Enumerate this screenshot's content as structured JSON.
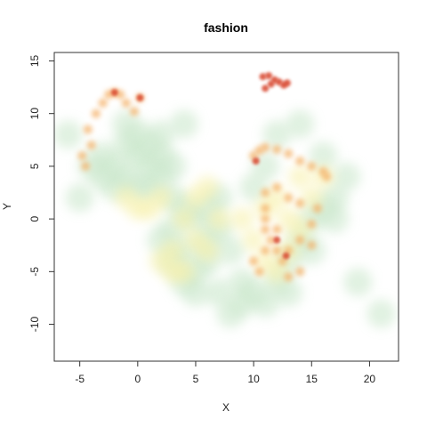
{
  "chart_data": {
    "type": "scatter",
    "title": "fashion",
    "xlabel": "X",
    "ylabel": "Y",
    "xlim": [
      -7.2,
      22.5
    ],
    "ylim": [
      -13.5,
      15.8
    ],
    "xticks": [
      -5,
      0,
      5,
      10,
      15,
      20
    ],
    "yticks": [
      -10,
      -5,
      0,
      5,
      10,
      15
    ],
    "grid": false,
    "legend": "none",
    "colors": {
      "low_density": "#c8e6c9",
      "mid_density": "#f7f0a8",
      "high_density": "#f5b066",
      "peak_density": "#d8462f"
    },
    "series": [
      {
        "density": "low",
        "points": [
          [
            -3,
            6
          ],
          [
            -2,
            5
          ],
          [
            -1,
            7
          ],
          [
            0,
            6
          ],
          [
            1,
            5
          ],
          [
            2,
            4
          ],
          [
            -2,
            3
          ],
          [
            -3,
            4
          ],
          [
            0,
            3
          ],
          [
            1,
            7
          ],
          [
            -1,
            4
          ],
          [
            2,
            6
          ],
          [
            3,
            5
          ],
          [
            -4,
            5
          ],
          [
            0,
            8
          ],
          [
            1,
            3
          ],
          [
            3,
            2
          ],
          [
            2,
            8
          ],
          [
            -1,
            9
          ],
          [
            4,
            1
          ],
          [
            3,
            -1
          ],
          [
            5,
            0
          ],
          [
            4,
            -3
          ],
          [
            6,
            -2
          ],
          [
            5,
            -5
          ],
          [
            7,
            -1
          ],
          [
            6,
            -4
          ],
          [
            3,
            -4
          ],
          [
            8,
            -3
          ],
          [
            4,
            -6
          ],
          [
            5,
            -7
          ],
          [
            6,
            1
          ],
          [
            7,
            2
          ],
          [
            2,
            -2
          ],
          [
            9,
            -6
          ],
          [
            7,
            -7
          ],
          [
            9,
            -8
          ],
          [
            10,
            -7
          ],
          [
            11,
            -8
          ],
          [
            12,
            -6
          ],
          [
            13,
            -4
          ],
          [
            14,
            -2
          ],
          [
            15,
            0
          ],
          [
            16,
            1
          ],
          [
            17,
            2
          ],
          [
            18,
            4
          ],
          [
            16,
            6
          ],
          [
            17,
            0
          ],
          [
            12,
            8
          ],
          [
            14,
            9
          ],
          [
            10,
            3
          ],
          [
            11,
            5
          ],
          [
            15,
            -3
          ],
          [
            13,
            -7
          ],
          [
            8,
            -9
          ],
          [
            -5,
            2
          ],
          [
            -6,
            8
          ],
          [
            4,
            9
          ],
          [
            19,
            -6
          ],
          [
            21,
            -9
          ]
        ]
      },
      {
        "density": "medium",
        "points": [
          [
            2,
            2
          ],
          [
            3,
            -3
          ],
          [
            4,
            0
          ],
          [
            5,
            2
          ],
          [
            6,
            -3
          ],
          [
            7,
            0
          ],
          [
            2,
            -4
          ],
          [
            3,
            -5
          ],
          [
            4,
            -5
          ],
          [
            1,
            1
          ],
          [
            -1,
            2
          ],
          [
            0,
            1
          ],
          [
            6,
            3
          ],
          [
            5,
            -2
          ],
          [
            11,
            -4
          ],
          [
            12,
            -5
          ],
          [
            13,
            -3
          ],
          [
            14,
            -1
          ],
          [
            15,
            2
          ],
          [
            16,
            4
          ],
          [
            11,
            1
          ],
          [
            12,
            2
          ],
          [
            13,
            0
          ],
          [
            10,
            -2
          ],
          [
            9,
            0
          ],
          [
            14,
            4
          ]
        ]
      },
      {
        "density": "high",
        "points": [
          [
            -4.5,
            5
          ],
          [
            -4,
            7
          ],
          [
            -4.3,
            8.5
          ],
          [
            -3.6,
            10
          ],
          [
            -3,
            11
          ],
          [
            -2.5,
            11.8
          ],
          [
            -2,
            12
          ],
          [
            -1.5,
            11.8
          ],
          [
            -1,
            11
          ],
          [
            -0.3,
            10.2
          ],
          [
            0.2,
            11.5
          ],
          [
            -4.8,
            6
          ],
          [
            10,
            6
          ],
          [
            10.5,
            6.5
          ],
          [
            11,
            6.8
          ],
          [
            12,
            6.6
          ],
          [
            13,
            6.2
          ],
          [
            14,
            5.5
          ],
          [
            15,
            5
          ],
          [
            16,
            4.5
          ],
          [
            16.3,
            4
          ],
          [
            12,
            3
          ],
          [
            13,
            2
          ],
          [
            14,
            1.5
          ],
          [
            11,
            2.5
          ],
          [
            11,
            1
          ],
          [
            11,
            0
          ],
          [
            11,
            -1
          ],
          [
            11.5,
            -2
          ],
          [
            12,
            -3
          ],
          [
            12.5,
            -4
          ],
          [
            11,
            -3
          ],
          [
            10,
            -4
          ],
          [
            10.5,
            -5
          ],
          [
            13,
            -3
          ],
          [
            14,
            -2
          ],
          [
            15,
            -0.5
          ],
          [
            15.5,
            1
          ],
          [
            15,
            -2.5
          ],
          [
            14,
            -5
          ],
          [
            13,
            -5.5
          ],
          [
            12,
            -1
          ]
        ]
      },
      {
        "density": "peak",
        "points": [
          [
            10.8,
            13.5
          ],
          [
            11.3,
            13.6
          ],
          [
            11.8,
            13.2
          ],
          [
            12.2,
            13
          ],
          [
            12.6,
            12.7
          ],
          [
            11.5,
            12.8
          ],
          [
            11,
            12.4
          ],
          [
            12.9,
            12.9
          ],
          [
            -2,
            12
          ],
          [
            0.2,
            11.5
          ],
          [
            10.2,
            5.5
          ],
          [
            12,
            -2
          ],
          [
            12.8,
            -3.5
          ]
        ]
      }
    ]
  }
}
